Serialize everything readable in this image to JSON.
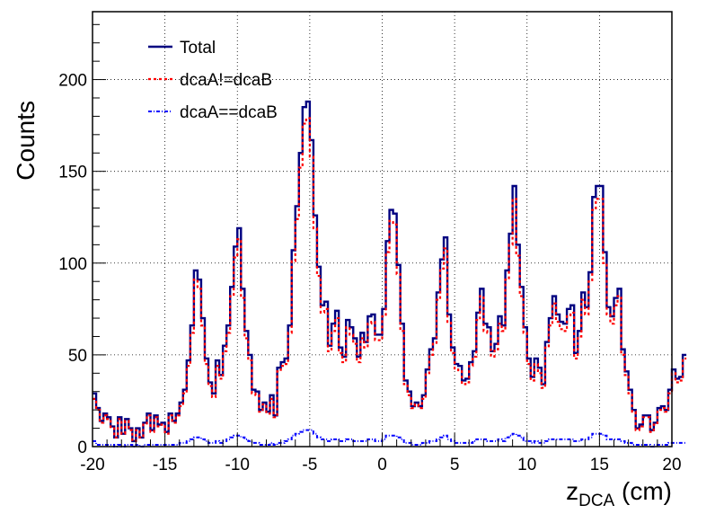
{
  "chart_data": {
    "type": "line",
    "style": "step-histogram",
    "title": "",
    "ylabel": "Counts",
    "xlabel": {
      "main": "z",
      "sub": "DCA",
      "unit": " (cm)"
    },
    "xlim": [
      -20,
      20
    ],
    "ylim": [
      0,
      237
    ],
    "xticks": [
      -20,
      -15,
      -10,
      -5,
      0,
      5,
      10,
      15,
      20
    ],
    "xtick_labels": [
      "-20",
      "-15",
      "-10",
      "-5",
      "0",
      "5",
      "10",
      "15",
      "20"
    ],
    "yticks": [
      0,
      50,
      100,
      150,
      200
    ],
    "ytick_labels": [
      "0",
      "50",
      "100",
      "150",
      "200"
    ],
    "grid": true,
    "legend_position": "top-left",
    "bin_width": 0.25,
    "series": [
      {
        "name": "Total",
        "color": "#000080",
        "line": "solid",
        "values": [
          29,
          21,
          14,
          18,
          16,
          11,
          5,
          16,
          7,
          15,
          10,
          3,
          10,
          5,
          13,
          18,
          9,
          17,
          12,
          13,
          8,
          18,
          14,
          18,
          24,
          31,
          47,
          66,
          96,
          91,
          70,
          48,
          35,
          29,
          47,
          39,
          55,
          66,
          87,
          109,
          119,
          86,
          63,
          50,
          31,
          30,
          20,
          24,
          19,
          28,
          17,
          43,
          46,
          48,
          66,
          107,
          131,
          160,
          185,
          188,
          167,
          126,
          98,
          77,
          79,
          55,
          67,
          74,
          54,
          49,
          69,
          65,
          59,
          49,
          62,
          57,
          71,
          72,
          61,
          61,
          75,
          112,
          129,
          127,
          99,
          67,
          36,
          30,
          22,
          24,
          22,
          28,
          42,
          53,
          59,
          84,
          102,
          114,
          72,
          54,
          45,
          44,
          36,
          37,
          46,
          52,
          73,
          86,
          67,
          65,
          52,
          56,
          71,
          66,
          96,
          116,
          142,
          110,
          87,
          65,
          48,
          38,
          48,
          43,
          34,
          57,
          70,
          82,
          72,
          68,
          67,
          75,
          77,
          51,
          63,
          84,
          76,
          95,
          136,
          142,
          142,
          106,
          76,
          71,
          81,
          86,
          53,
          41,
          31,
          20,
          10,
          12,
          17,
          17,
          9,
          13,
          21,
          22,
          20,
          31,
          42,
          37,
          38,
          50
        ]
      },
      {
        "name": "dcaA!=dcaB",
        "color": "#ff0000",
        "line": "dotted",
        "values": [
          26,
          20,
          13,
          17,
          15,
          10,
          5,
          15,
          7,
          14,
          9,
          3,
          9,
          5,
          12,
          17,
          8,
          16,
          11,
          12,
          7,
          17,
          13,
          17,
          22,
          29,
          44,
          62,
          91,
          86,
          66,
          45,
          33,
          27,
          44,
          37,
          52,
          62,
          82,
          103,
          113,
          81,
          59,
          47,
          29,
          28,
          19,
          23,
          18,
          26,
          16,
          41,
          44,
          45,
          62,
          101,
          124,
          152,
          176,
          179,
          158,
          119,
          93,
          73,
          75,
          52,
          63,
          70,
          51,
          46,
          65,
          61,
          56,
          46,
          59,
          54,
          67,
          68,
          58,
          58,
          71,
          106,
          123,
          121,
          94,
          63,
          34,
          28,
          21,
          23,
          21,
          26,
          40,
          50,
          56,
          80,
          97,
          108,
          68,
          51,
          42,
          41,
          34,
          35,
          44,
          49,
          69,
          82,
          63,
          62,
          49,
          53,
          67,
          63,
          91,
          110,
          135,
          104,
          82,
          62,
          45,
          36,
          45,
          40,
          32,
          54,
          66,
          78,
          68,
          64,
          63,
          71,
          73,
          48,
          60,
          80,
          72,
          90,
          129,
          135,
          135,
          100,
          72,
          67,
          77,
          82,
          50,
          39,
          29,
          19,
          9,
          11,
          16,
          16,
          8,
          12,
          20,
          21,
          19,
          29,
          40,
          35,
          36,
          48
        ]
      },
      {
        "name": "dcaA==dcaB",
        "color": "#0000ff",
        "line": "dashdot",
        "values": [
          3,
          1,
          1,
          1,
          1,
          1,
          0,
          1,
          0,
          1,
          1,
          0,
          1,
          0,
          1,
          1,
          1,
          1,
          1,
          1,
          1,
          1,
          1,
          1,
          2,
          2,
          3,
          4,
          5,
          5,
          4,
          3,
          2,
          2,
          3,
          2,
          3,
          4,
          5,
          6,
          6,
          5,
          4,
          3,
          2,
          2,
          1,
          1,
          1,
          2,
          1,
          2,
          2,
          3,
          4,
          6,
          7,
          8,
          9,
          9,
          9,
          7,
          5,
          4,
          4,
          3,
          4,
          4,
          3,
          3,
          4,
          4,
          3,
          3,
          3,
          3,
          4,
          4,
          3,
          3,
          4,
          6,
          6,
          6,
          5,
          4,
          2,
          2,
          1,
          1,
          1,
          2,
          2,
          3,
          3,
          4,
          5,
          6,
          4,
          3,
          2,
          2,
          2,
          2,
          2,
          3,
          4,
          4,
          4,
          3,
          3,
          3,
          4,
          3,
          5,
          6,
          7,
          6,
          5,
          3,
          3,
          2,
          3,
          2,
          2,
          3,
          4,
          4,
          4,
          4,
          4,
          4,
          4,
          3,
          3,
          4,
          4,
          5,
          7,
          7,
          7,
          6,
          4,
          4,
          4,
          4,
          3,
          2,
          2,
          1,
          1,
          1,
          1,
          1,
          0,
          1,
          1,
          1,
          1,
          2,
          2,
          2,
          2,
          2
        ]
      }
    ]
  }
}
